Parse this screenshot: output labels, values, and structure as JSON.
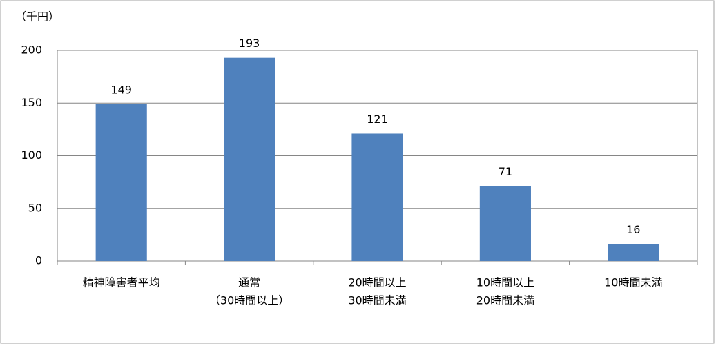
{
  "chart_data": {
    "type": "bar",
    "y_unit_label": "（千円）",
    "categories": [
      [
        "精神障害者平均"
      ],
      [
        "通常",
        "（30時間以上）"
      ],
      [
        "20時間以上",
        "30時間未満"
      ],
      [
        "10時間以上",
        "20時間未満"
      ],
      [
        "10時間未満"
      ]
    ],
    "values": [
      149,
      193,
      121,
      71,
      16
    ],
    "color": "#4f81bd",
    "ylim": [
      0,
      200
    ],
    "yticks": [
      0,
      50,
      100,
      150,
      200
    ],
    "grid": true
  }
}
